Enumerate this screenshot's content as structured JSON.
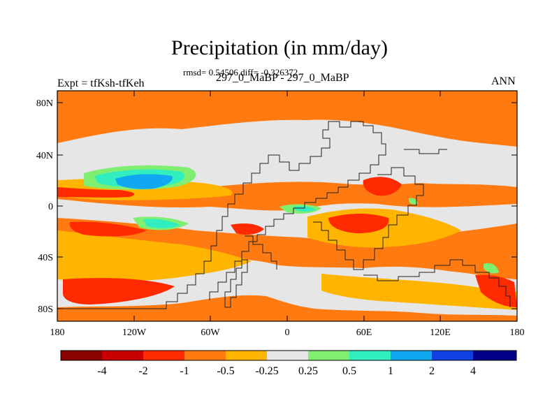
{
  "title": "Precipitation (in mm/day)",
  "stats": "rmsd= 0.54506 diff= -0.326372",
  "experiment": "Expt = tfKsh-tfKeh",
  "period": "297_0_MaBP - 297_0_MaBP",
  "season": "ANN",
  "lat_ticks": [
    "80N",
    "40N",
    "0",
    "40S",
    "80S"
  ],
  "lon_ticks": [
    "180",
    "120W",
    "60W",
    "0",
    "60E",
    "120E",
    "180"
  ],
  "colorbar": {
    "labels": [
      "-4",
      "-2",
      "-1",
      "-0.5",
      "-0.25",
      "0.25",
      "0.5",
      "1",
      "2",
      "4"
    ],
    "colors": [
      "#8b0000",
      "#c80000",
      "#ff2a00",
      "#ff7a10",
      "#ffb400",
      "#e6e6e6",
      "#80ee70",
      "#30eec0",
      "#10a8f0",
      "#1040e0",
      "#000088"
    ]
  },
  "map_colors": {
    "ocean_bg": "#ff7a10",
    "neutral": "#e6e6e6",
    "light_orange": "#ffb400",
    "red": "#ff2a00",
    "green": "#80ee70",
    "cyan": "#30eec0",
    "blue": "#10a8f0"
  }
}
